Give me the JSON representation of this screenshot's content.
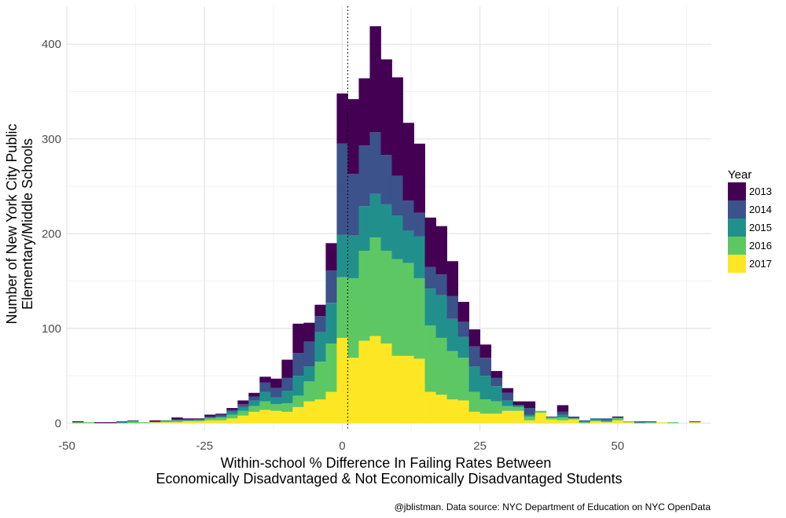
{
  "chart_data": {
    "type": "bar",
    "subtype": "stacked-histogram",
    "xlabel": [
      "Within-school % Difference In Failing Rates Between",
      "Economically Disadvantaged & Not Economically Disadvantaged Students"
    ],
    "ylabel": [
      "Number of New York City Public",
      "Elementary/Middle Schools"
    ],
    "caption": "@jblistman. Data source: NYC Department of Education on NYC OpenData",
    "xlim": [
      -50,
      67
    ],
    "ylim": [
      -8,
      440
    ],
    "x_ticks": [
      -50,
      -25,
      0,
      25,
      50
    ],
    "x_tick_labels": [
      "-50",
      "-25",
      "0",
      "25",
      "50"
    ],
    "y_ticks": [
      0,
      100,
      200,
      300,
      400
    ],
    "y_tick_labels": [
      "0",
      "100",
      "200",
      "300",
      "400"
    ],
    "bin_width": 2,
    "bin_centers": [
      -48,
      -46,
      -44,
      -42,
      -40,
      -38,
      -36,
      -34,
      -32,
      -30,
      -28,
      -26,
      -24,
      -22,
      -20,
      -18,
      -16,
      -14,
      -12,
      -10,
      -8,
      -6,
      -4,
      -2,
      0,
      2,
      4,
      6,
      8,
      10,
      12,
      14,
      16,
      18,
      20,
      22,
      24,
      26,
      28,
      30,
      32,
      34,
      36,
      38,
      40,
      42,
      44,
      46,
      48,
      50,
      52,
      54,
      56,
      58,
      60,
      62,
      64
    ],
    "reference_line": {
      "x": 1,
      "style": "dotted"
    },
    "legend": {
      "title": "Year",
      "position": "right"
    },
    "grid": true,
    "series": [
      {
        "name": "2017",
        "color": "#FDE725",
        "values": [
          0,
          0,
          0,
          0,
          0,
          0,
          0,
          1,
          1,
          1,
          2,
          2,
          3,
          3,
          5,
          8,
          12,
          14,
          13,
          12,
          17,
          23,
          25,
          33,
          90,
          69,
          87,
          92,
          84,
          71,
          71,
          68,
          33,
          30,
          25,
          24,
          12,
          10,
          10,
          13,
          13,
          3,
          11,
          4,
          3,
          4,
          0,
          2,
          1,
          3,
          1,
          0,
          0,
          1,
          0,
          0,
          1
        ]
      },
      {
        "name": "2016",
        "color": "#5DC863",
        "values": [
          1,
          1,
          0,
          0,
          0,
          2,
          1,
          0,
          1,
          2,
          1,
          1,
          2,
          3,
          4,
          5,
          6,
          9,
          7,
          9,
          12,
          21,
          40,
          51,
          64,
          84,
          95,
          104,
          98,
          102,
          98,
          85,
          70,
          60,
          51,
          45,
          21,
          15,
          13,
          5,
          4,
          4,
          2,
          2,
          3,
          1,
          1,
          1,
          1,
          2,
          1,
          0,
          1,
          0,
          1,
          0,
          0
        ]
      },
      {
        "name": "2015",
        "color": "#21908C",
        "values": [
          0,
          0,
          0,
          0,
          1,
          0,
          0,
          0,
          1,
          0,
          0,
          1,
          1,
          1,
          3,
          4,
          6,
          10,
          7,
          13,
          21,
          16,
          31,
          43,
          45,
          45,
          47,
          46,
          49,
          46,
          34,
          44,
          39,
          45,
          34,
          22,
          27,
          25,
          16,
          6,
          2,
          2,
          0,
          0,
          3,
          0,
          1,
          1,
          1,
          1,
          0,
          1,
          0,
          0,
          0,
          0,
          0
        ]
      },
      {
        "name": "2014",
        "color": "#3B528B",
        "values": [
          0,
          0,
          0,
          0,
          1,
          1,
          0,
          1,
          0,
          1,
          1,
          0,
          1,
          2,
          2,
          3,
          4,
          10,
          10,
          14,
          24,
          26,
          17,
          34,
          96,
          65,
          64,
          65,
          52,
          42,
          32,
          25,
          23,
          22,
          24,
          16,
          21,
          19,
          9,
          8,
          0,
          7,
          0,
          1,
          3,
          2,
          1,
          1,
          2,
          0,
          0,
          1,
          1,
          0,
          0,
          0,
          1
        ]
      },
      {
        "name": "2013",
        "color": "#440154",
        "values": [
          1,
          0,
          1,
          1,
          0,
          0,
          0,
          1,
          0,
          2,
          1,
          1,
          2,
          1,
          2,
          4,
          4,
          6,
          10,
          19,
          31,
          20,
          12,
          29,
          53,
          79,
          71,
          112,
          101,
          104,
          82,
          73,
          52,
          51,
          37,
          21,
          18,
          14,
          7,
          5,
          4,
          7,
          0,
          0,
          7,
          0,
          0,
          0,
          0,
          1,
          0,
          0,
          0,
          0,
          0,
          0,
          0
        ]
      }
    ]
  }
}
